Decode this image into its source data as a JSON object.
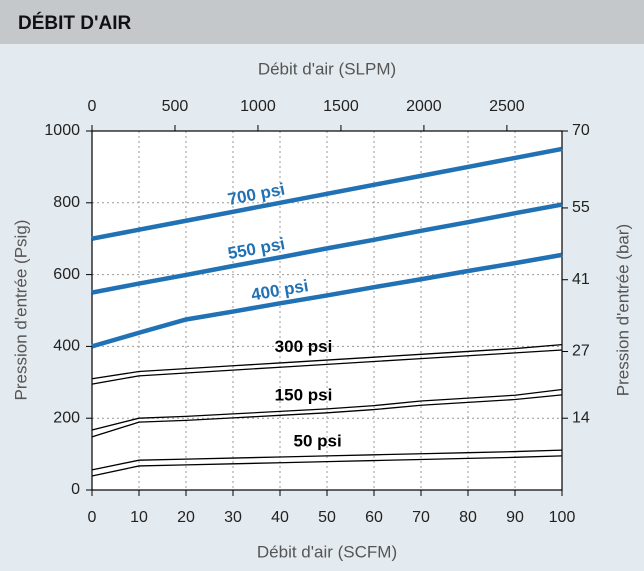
{
  "chart_data": {
    "type": "line",
    "title": "DÉBIT D'AIR",
    "xlabel": "Débit d'air (SCFM)",
    "x2label": "Débit d'air (SLPM)",
    "ylabel": "Pression d'entrée (Psig)",
    "y2label": "Pression d'entrée (bar)",
    "x": [
      0,
      10,
      20,
      30,
      40,
      50,
      60,
      70,
      80,
      90,
      100
    ],
    "xlim": [
      0,
      100
    ],
    "xticks": [
      0,
      10,
      20,
      30,
      40,
      50,
      60,
      70,
      80,
      90,
      100
    ],
    "x2lim": [
      0,
      2832
    ],
    "x2ticks": [
      0,
      500,
      1000,
      1500,
      2000,
      2500
    ],
    "ylim": [
      0,
      1000
    ],
    "yticks": [
      0,
      200,
      400,
      600,
      800,
      1000
    ],
    "y2lim": [
      0,
      70
    ],
    "y2ticks": [
      14,
      27,
      41,
      55,
      70
    ],
    "grid": true,
    "series": [
      {
        "name": "700 psi",
        "color": "#2171b5",
        "values": [
          700,
          725,
          750,
          775,
          800,
          825,
          850,
          875,
          900,
          925,
          950
        ]
      },
      {
        "name": "550 psi",
        "color": "#2171b5",
        "values": [
          550,
          575,
          599,
          624,
          648,
          673,
          697,
          722,
          746,
          771,
          795
        ]
      },
      {
        "name": "400 psi",
        "color": "#2171b5",
        "values": [
          400,
          438,
          475,
          497,
          520,
          542,
          565,
          587,
          610,
          632,
          655
        ]
      },
      {
        "name": "300 psi",
        "color": "#000000",
        "values": [
          310,
          330,
          338,
          346,
          354,
          362,
          370,
          378,
          386,
          394,
          405
        ],
        "lower_values": [
          295,
          318,
          326,
          334,
          342,
          350,
          358,
          366,
          374,
          382,
          390
        ]
      },
      {
        "name": "150 psi",
        "color": "#000000",
        "values": [
          167,
          200,
          205,
          212,
          219,
          226,
          235,
          248,
          256,
          264,
          280
        ],
        "lower_values": [
          148,
          189,
          194,
          201,
          208,
          215,
          224,
          236,
          244,
          252,
          265
        ]
      },
      {
        "name": "50 psi",
        "color": "#000000",
        "values": [
          56,
          83,
          86,
          89,
          92,
          95,
          98,
          101,
          104,
          107,
          111
        ],
        "lower_values": [
          39,
          67,
          70,
          73,
          76,
          79,
          82,
          85,
          88,
          91,
          95
        ]
      }
    ]
  }
}
